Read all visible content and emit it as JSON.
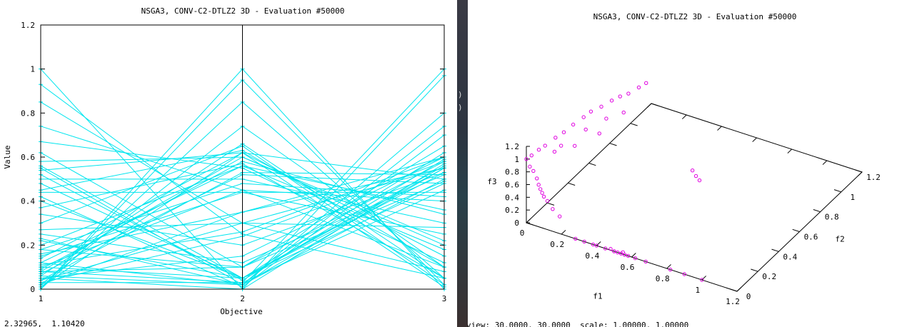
{
  "left_window": {
    "status_text": "2.32965,  1.10420"
  },
  "right_window": {
    "status_text": "view: 30.0000, 30.0000  scale: 1.00000, 1.00000"
  },
  "desktop_strip_glyphs": [
    ")",
    ")"
  ],
  "colors": {
    "parallel_lines": "#00e5ee",
    "points": "#e000e0",
    "axes": "#000000"
  },
  "chart_data": [
    {
      "type": "line",
      "title": "NSGA3, CONV-C2-DTLZ2 3D - Evaluation #50000",
      "xlabel": "Objective",
      "ylabel": "Value",
      "categories": [
        "1",
        "2",
        "3"
      ],
      "x_ticks": [
        "1",
        "2",
        "3"
      ],
      "y_ticks": [
        "0",
        "0.2",
        "0.4",
        "0.6",
        "0.8",
        "1",
        "1.2"
      ],
      "xlim": [
        1,
        3
      ],
      "ylim": [
        0,
        1.2
      ],
      "grid": false,
      "legend": "none",
      "lines": [
        [
          1.0,
          0.0,
          0.0
        ],
        [
          0.93,
          0.25,
          0.05
        ],
        [
          0.85,
          0.3,
          0.08
        ],
        [
          0.74,
          0.45,
          0.1
        ],
        [
          0.67,
          0.55,
          0.12
        ],
        [
          0.62,
          0.1,
          0.49
        ],
        [
          0.58,
          0.6,
          0.2
        ],
        [
          0.56,
          0.05,
          0.53
        ],
        [
          0.55,
          0.02,
          0.55
        ],
        [
          0.54,
          0.62,
          0.15
        ],
        [
          0.52,
          0.04,
          0.59
        ],
        [
          0.5,
          0.5,
          0.3
        ],
        [
          0.48,
          0.05,
          0.62
        ],
        [
          0.45,
          0.63,
          0.1
        ],
        [
          0.44,
          0.44,
          0.44
        ],
        [
          0.42,
          0.01,
          0.7
        ],
        [
          0.4,
          0.05,
          0.48
        ],
        [
          0.37,
          0.57,
          0.05
        ],
        [
          0.34,
          0.2,
          0.53
        ],
        [
          0.3,
          0.65,
          0.02
        ],
        [
          0.27,
          0.3,
          0.55
        ],
        [
          0.23,
          0.02,
          0.8
        ],
        [
          0.2,
          0.56,
          0.18
        ],
        [
          0.18,
          0.1,
          0.58
        ],
        [
          0.16,
          0.35,
          0.6
        ],
        [
          0.14,
          0.62,
          0.01
        ],
        [
          0.12,
          0.02,
          0.74
        ],
        [
          0.1,
          0.45,
          0.4
        ],
        [
          0.09,
          0.58,
          0.34
        ],
        [
          0.08,
          0.1,
          0.65
        ],
        [
          0.07,
          0.52,
          0.48
        ],
        [
          0.06,
          0.66,
          0.05
        ],
        [
          0.05,
          0.15,
          0.6
        ],
        [
          0.04,
          0.53,
          0.52
        ],
        [
          0.03,
          0.03,
          1.0
        ],
        [
          0.02,
          0.35,
          0.55
        ],
        [
          0.01,
          0.62,
          0.5
        ],
        [
          0.0,
          1.0,
          0.0
        ],
        [
          0.0,
          0.95,
          0.02
        ],
        [
          0.0,
          0.85,
          0.05
        ],
        [
          0.02,
          0.74,
          0.1
        ],
        [
          0.05,
          0.0,
          0.97
        ],
        [
          0.08,
          0.6,
          0.22
        ],
        [
          0.1,
          0.05,
          0.55
        ],
        [
          0.12,
          0.56,
          0.36
        ],
        [
          0.0,
          0.0,
          0.57
        ],
        [
          0.15,
          0.44,
          0.25
        ],
        [
          0.06,
          0.02,
          0.5
        ],
        [
          0.22,
          0.05,
          0.56
        ],
        [
          0.03,
          0.24,
          0.58
        ],
        [
          0.25,
          0.12,
          0.52
        ],
        [
          0.18,
          0.48,
          0.42
        ],
        [
          0.08,
          0.03,
          0.45
        ],
        [
          0.04,
          0.3,
          0.28
        ],
        [
          0.11,
          0.26,
          0.6
        ]
      ]
    },
    {
      "type": "scatter",
      "title": "NSGA3, CONV-C2-DTLZ2 3D - Evaluation #50000",
      "xlabel": "f1",
      "ylabel": "f2",
      "zlabel": "f3",
      "x_ticks": [
        "0",
        "0.2",
        "0.4",
        "0.6",
        "0.8",
        "1",
        "1.2"
      ],
      "y_ticks": [
        "0",
        "0.2",
        "0.4",
        "0.6",
        "0.8",
        "1",
        "1.2"
      ],
      "z_ticks": [
        "0",
        "0.2",
        "0.4",
        "0.6",
        "0.8",
        "1",
        "1.2"
      ],
      "xlim": [
        0,
        1.2
      ],
      "ylim": [
        0,
        1.2
      ],
      "zlim": [
        0,
        1.2
      ],
      "view": [
        30,
        30
      ],
      "scale": [
        1,
        1
      ],
      "points": [
        [
          0.0,
          0.0,
          1.0
        ],
        [
          0.02,
          0.0,
          0.9
        ],
        [
          0.04,
          0.0,
          0.85
        ],
        [
          0.06,
          0.0,
          0.75
        ],
        [
          0.07,
          0.0,
          0.66
        ],
        [
          0.08,
          0.0,
          0.6
        ],
        [
          0.09,
          0.0,
          0.55
        ],
        [
          0.1,
          0.0,
          0.5
        ],
        [
          0.12,
          0.0,
          0.45
        ],
        [
          0.15,
          0.0,
          0.35
        ],
        [
          0.19,
          0.0,
          0.27
        ],
        [
          0.0,
          0.05,
          0.98
        ],
        [
          0.0,
          0.12,
          0.96
        ],
        [
          0.0,
          0.18,
          0.93
        ],
        [
          0.0,
          0.28,
          0.9
        ],
        [
          0.0,
          0.36,
          0.86
        ],
        [
          0.0,
          0.45,
          0.84
        ],
        [
          0.0,
          0.55,
          0.8
        ],
        [
          0.0,
          0.62,
          0.78
        ],
        [
          0.0,
          0.72,
          0.7
        ],
        [
          0.0,
          0.82,
          0.64
        ],
        [
          0.0,
          0.9,
          0.58
        ],
        [
          0.0,
          0.98,
          0.5
        ],
        [
          0.0,
          1.08,
          0.44
        ],
        [
          0.0,
          1.15,
          0.4
        ],
        [
          0.02,
          0.3,
          0.76
        ],
        [
          0.03,
          0.52,
          0.68
        ],
        [
          0.04,
          0.7,
          0.58
        ],
        [
          0.05,
          0.85,
          0.45
        ],
        [
          0.06,
          0.6,
          0.52
        ],
        [
          0.05,
          0.38,
          0.66
        ],
        [
          0.03,
          0.22,
          0.8
        ],
        [
          0.28,
          0.0,
          0.0
        ],
        [
          0.33,
          0.0,
          0.0
        ],
        [
          0.38,
          0.0,
          0.0
        ],
        [
          0.4,
          0.0,
          0.0
        ],
        [
          0.45,
          0.0,
          0.0
        ],
        [
          0.5,
          0.0,
          0.0
        ],
        [
          0.52,
          0.0,
          0.0
        ],
        [
          0.54,
          0.0,
          0.0
        ],
        [
          0.56,
          0.0,
          0.0
        ],
        [
          0.58,
          0.0,
          0.0
        ],
        [
          0.62,
          0.0,
          0.0
        ],
        [
          0.68,
          0.0,
          0.0
        ],
        [
          0.82,
          0.0,
          0.0
        ],
        [
          0.9,
          0.0,
          0.0
        ],
        [
          1.0,
          0.0,
          0.0
        ],
        [
          0.48,
          0.0,
          0.02
        ],
        [
          0.55,
          0.0,
          0.03
        ],
        [
          0.5,
          0.0,
          0.0
        ],
        [
          0.62,
          0.55,
          0.52
        ],
        [
          0.64,
          0.55,
          0.45
        ],
        [
          0.66,
          0.55,
          0.4
        ]
      ]
    }
  ]
}
